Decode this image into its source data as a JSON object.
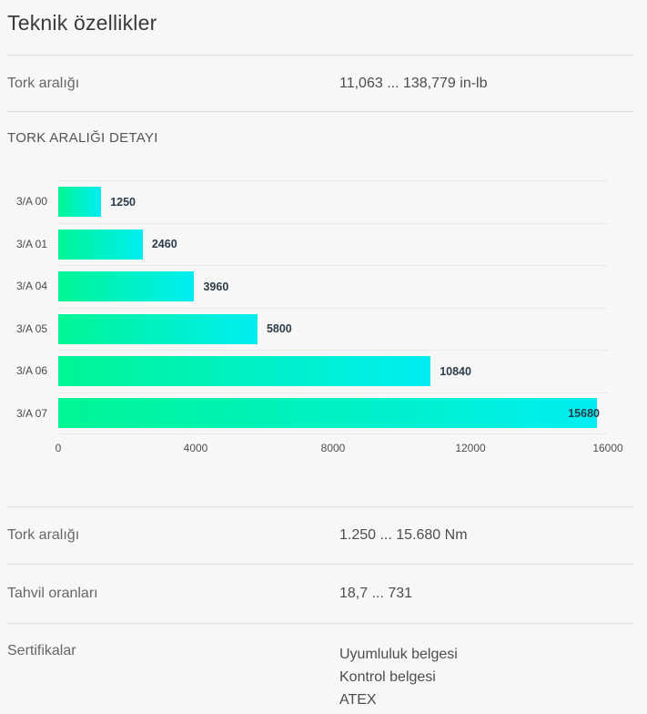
{
  "page": {
    "title": "Teknik özellikler"
  },
  "specs_top": [
    {
      "label": "Tork aralığı",
      "value": "11,063 ... 138,779 in-lb"
    }
  ],
  "section": {
    "heading": "TORK ARALIĞI DETAYI"
  },
  "chart_data": {
    "type": "bar",
    "orientation": "horizontal",
    "title": "TORK ARALIĞI DETAYI",
    "categories": [
      "3/A 00",
      "3/A 01",
      "3/A 04",
      "3/A 05",
      "3/A 06",
      "3/A 07"
    ],
    "values": [
      1250,
      2460,
      3960,
      5800,
      10840,
      15680
    ],
    "xticks": [
      0,
      4000,
      8000,
      12000,
      16000
    ],
    "xlim": [
      0,
      16000
    ],
    "xlabel": "",
    "ylabel": "",
    "grid": "row-separators-only",
    "legend": "none",
    "bar_gradient": [
      "#00f593",
      "#00eef2"
    ],
    "value_label_color": "#2c3d47",
    "last_value_label_position": "inside-bar-right"
  },
  "specs_bottom": [
    {
      "label": "Tork aralığı",
      "value": "1.250 ... 15.680 Nm"
    },
    {
      "label": "Tahvil oranları",
      "value": "18,7 ... 731"
    },
    {
      "label": "Sertifikalar",
      "values": [
        "Uyumluluk belgesi",
        "Kontrol belgesi",
        "ATEX"
      ]
    }
  ],
  "colors": {
    "background": "#f7f7f7",
    "divider": "#dcdcdc",
    "chart_separator": "#e9e9e9",
    "title_text": "#3a3a3a",
    "label_text": "#676767",
    "value_text": "#4d4d4d"
  }
}
